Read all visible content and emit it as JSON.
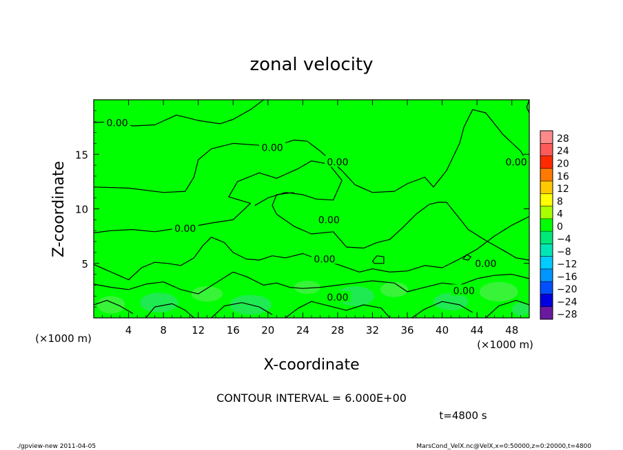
{
  "chart_data": {
    "type": "heatmap",
    "title": "zonal velocity",
    "xlabel": "X-coordinate",
    "ylabel": "Z-coordinate",
    "x_unit": "(×1000 m)",
    "y_unit": "(×1000 m)",
    "xlim": [
      0,
      50
    ],
    "ylim": [
      0,
      20
    ],
    "x_ticks": [
      4,
      8,
      12,
      16,
      20,
      24,
      28,
      32,
      36,
      40,
      44,
      48
    ],
    "y_ticks": [
      5,
      10,
      15
    ],
    "colorbar": {
      "levels": [
        28,
        24,
        20,
        16,
        12,
        8,
        4,
        0,
        -4,
        -8,
        -12,
        -16,
        -20,
        -24,
        -28
      ],
      "colors": [
        "#ff8a8a",
        "#ff5a5a",
        "#ff2a00",
        "#ff7a00",
        "#ffc800",
        "#ffff00",
        "#a8ff00",
        "#00ff00",
        "#00e878",
        "#00e6b4",
        "#00ccff",
        "#0096ff",
        "#0050ff",
        "#0000e0",
        "#6a1aa0"
      ]
    },
    "field_colors": {
      "background": "#00ff00",
      "near_zero_pos": "#3ef23e",
      "near_zero_neg": "#22e85a"
    },
    "contour_labels": [
      {
        "text": "0.00",
        "x": 2.7,
        "z": 17.9
      },
      {
        "text": "0.00",
        "x": 20.5,
        "z": 15.6
      },
      {
        "text": "0.00",
        "x": 28.0,
        "z": 14.3
      },
      {
        "text": "0.00",
        "x": 48.5,
        "z": 14.3
      },
      {
        "text": "0.00",
        "x": 10.5,
        "z": 8.2
      },
      {
        "text": "0.00",
        "x": 27.0,
        "z": 9.0
      },
      {
        "text": "0.00",
        "x": 26.5,
        "z": 5.4
      },
      {
        "text": "0.00",
        "x": 45.0,
        "z": 5.0
      },
      {
        "text": "0.00",
        "x": 28.0,
        "z": 1.9
      },
      {
        "text": "0.00",
        "x": 42.5,
        "z": 2.5
      }
    ]
  },
  "annotations": {
    "contour_interval": "CONTOUR INTERVAL = 6.000E+00",
    "time": "t=4800 s",
    "footer_left": "./gpview-new   2011-04-05",
    "footer_right": "MarsCond_VelX.nc@VelX,x=0:50000,z=0:20000,t=4800"
  }
}
